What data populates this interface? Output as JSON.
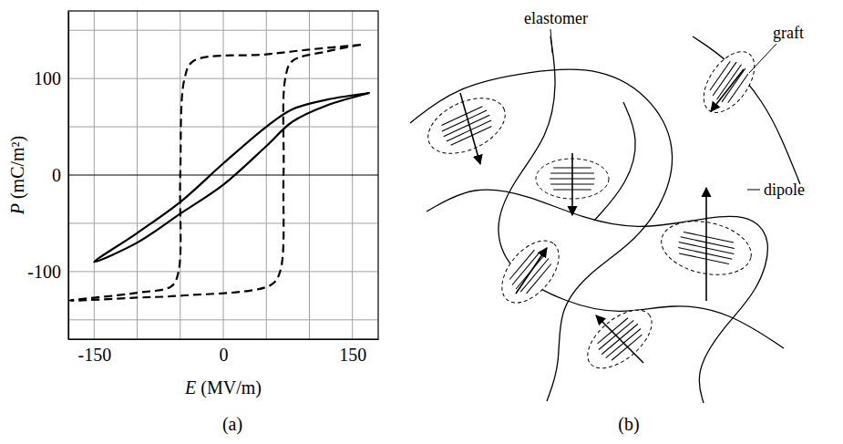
{
  "chart_data": {
    "type": "line",
    "caption": "(a)",
    "x_label": "E (MV/m)",
    "y_label": "P (mC/m²)",
    "xlim": [
      -180,
      180
    ],
    "xticks": [
      {
        "value": -150,
        "label": "-150"
      },
      {
        "value": -100,
        "label": null
      },
      {
        "value": -50,
        "label": null
      },
      0,
      {
        "value": 50,
        "label": null
      },
      {
        "value": 100,
        "label": null
      },
      150
    ],
    "ylim": [
      -170,
      170
    ],
    "yticks": [
      {
        "value": -150,
        "label": null
      },
      {
        "value": -100,
        "label": "-100"
      },
      {
        "value": -50,
        "label": null
      },
      0,
      {
        "value": 50,
        "label": null
      },
      100,
      {
        "value": 150,
        "label": null
      }
    ],
    "grid": true,
    "series": [
      {
        "color": "#000000",
        "line_style": "solid",
        "x": [
          170,
          120,
          80,
          50,
          0,
          -50,
          -100,
          -150,
          -100,
          -50,
          0,
          50,
          80,
          120,
          170
        ],
        "values": [
          85,
          78,
          68,
          50,
          12,
          -28,
          -60,
          -90,
          -70,
          -40,
          -10,
          30,
          55,
          72,
          85
        ]
      },
      {
        "color": "#000000",
        "line_style": "dashed",
        "x": [
          160,
          100,
          50,
          -35,
          -45,
          -50,
          -52,
          -60,
          -100,
          -178,
          -100,
          -50,
          55,
          66,
          70,
          72,
          80,
          120,
          160
        ],
        "values": [
          135,
          130,
          125,
          118,
          100,
          0,
          -100,
          -115,
          -122,
          -130,
          -127,
          -125,
          -114,
          -100,
          0,
          100,
          118,
          128,
          135
        ]
      }
    ]
  },
  "diagram": {
    "caption": "(b)",
    "labels": [
      "elastomer",
      "graft",
      "dipole"
    ]
  }
}
